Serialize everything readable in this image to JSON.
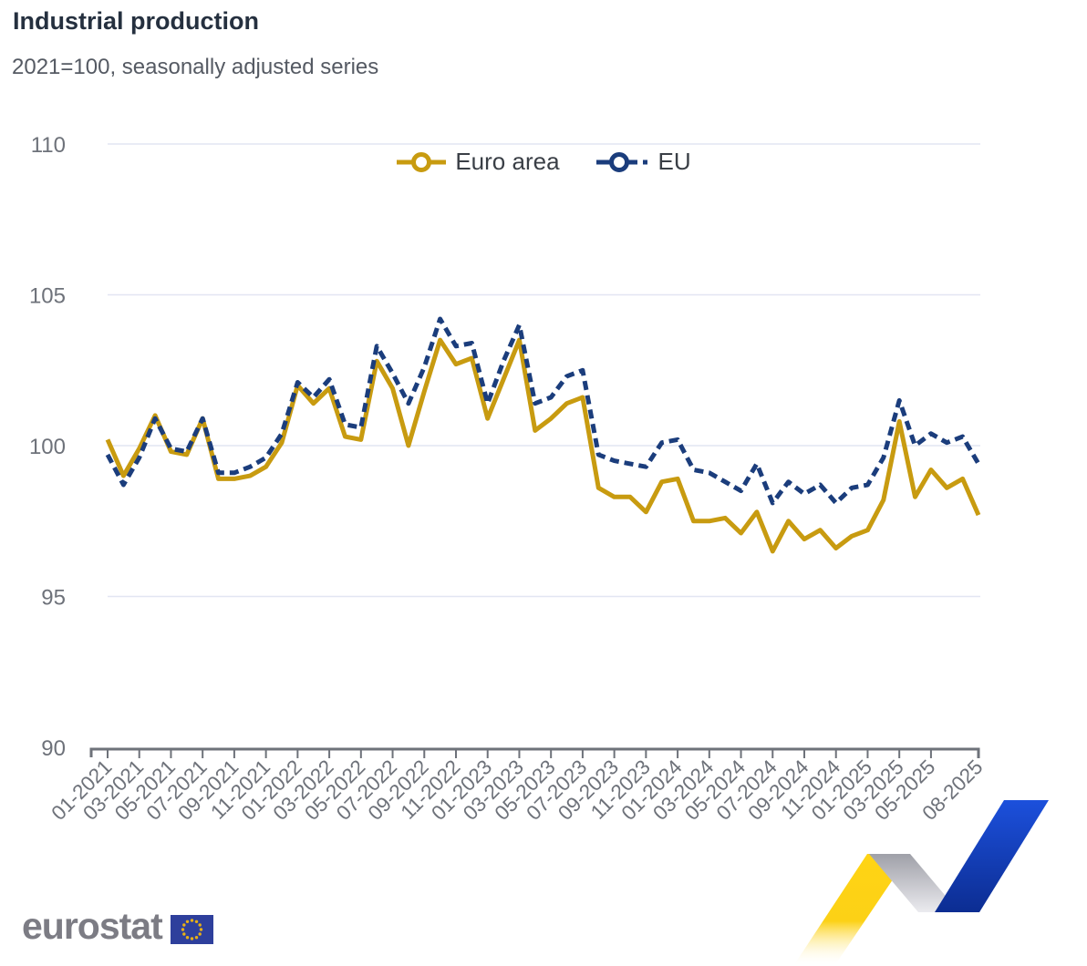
{
  "header": {
    "title": "Industrial production",
    "subtitle": "2021=100, seasonally adjusted series"
  },
  "legend": [
    {
      "label": "Euro area",
      "color": "#c89b10",
      "style": "solid"
    },
    {
      "label": "EU",
      "color": "#1b3d7c",
      "style": "dashed"
    }
  ],
  "footer": {
    "logo_text": "eurostat"
  },
  "colors": {
    "euro_area_line": "#c89b10",
    "eu_line": "#1b3d7c",
    "gridline": "#e2e5f2",
    "axis_line": "#6e727a",
    "axis_text": "#6e727a",
    "title_text": "#25303f",
    "subtitle_text": "#555a63",
    "flag_blue": "#2e3f9c",
    "flag_stars": "#e8b016",
    "swoosh_yellow": "#ffd414",
    "swoosh_blue": "#1c50dc"
  },
  "chart_data": {
    "type": "line",
    "title": "Industrial production",
    "subtitle": "2021=100, seasonally adjusted series",
    "xlabel": "",
    "ylabel": "",
    "ylim": [
      90,
      110
    ],
    "yticks": [
      90,
      95,
      100,
      105,
      110
    ],
    "grid": true,
    "legend_position": "top-center",
    "x": [
      "01-2021",
      "02-2021",
      "03-2021",
      "04-2021",
      "05-2021",
      "06-2021",
      "07-2021",
      "08-2021",
      "09-2021",
      "10-2021",
      "11-2021",
      "12-2021",
      "01-2022",
      "02-2022",
      "03-2022",
      "04-2022",
      "05-2022",
      "06-2022",
      "07-2022",
      "08-2022",
      "09-2022",
      "10-2022",
      "11-2022",
      "12-2022",
      "01-2023",
      "02-2023",
      "03-2023",
      "04-2023",
      "05-2023",
      "06-2023",
      "07-2023",
      "08-2023",
      "09-2023",
      "10-2023",
      "11-2023",
      "12-2023",
      "01-2024",
      "02-2024",
      "03-2024",
      "04-2024",
      "05-2024",
      "06-2024",
      "07-2024",
      "08-2024",
      "09-2024",
      "10-2024",
      "11-2024",
      "12-2024",
      "01-2025",
      "02-2025",
      "03-2025",
      "04-2025",
      "05-2025",
      "06-2025",
      "07-2025",
      "08-2025"
    ],
    "x_tick_indices": [
      0,
      2,
      4,
      6,
      8,
      10,
      12,
      14,
      16,
      18,
      20,
      22,
      24,
      26,
      28,
      30,
      32,
      34,
      36,
      38,
      40,
      42,
      44,
      46,
      48,
      50,
      52,
      55
    ],
    "x_tick_labels": [
      "01-2021",
      "03-2021",
      "05-2021",
      "07-2021",
      "09-2021",
      "11-2021",
      "01-2022",
      "03-2022",
      "05-2022",
      "07-2022",
      "09-2022",
      "11-2022",
      "01-2023",
      "03-2023",
      "05-2023",
      "07-2023",
      "09-2023",
      "11-2023",
      "01-2024",
      "03-2024",
      "05-2024",
      "07-2024",
      "09-2024",
      "11-2024",
      "01-2025",
      "03-2025",
      "05-2025",
      "08-2025"
    ],
    "series": [
      {
        "name": "Euro area",
        "color": "#c89b10",
        "dash": "solid",
        "values": [
          100.2,
          99.0,
          99.9,
          101.0,
          99.8,
          99.7,
          100.9,
          98.9,
          98.9,
          99.0,
          99.3,
          100.1,
          102.0,
          101.4,
          101.9,
          100.3,
          100.2,
          102.8,
          101.9,
          100.0,
          101.8,
          103.5,
          102.7,
          102.9,
          100.9,
          102.2,
          103.5,
          100.5,
          100.9,
          101.4,
          101.6,
          98.6,
          98.3,
          98.3,
          97.8,
          98.8,
          98.9,
          97.5,
          97.5,
          97.6,
          97.1,
          97.8,
          96.5,
          97.5,
          96.9,
          97.2,
          96.6,
          97.0,
          97.2,
          98.2,
          100.8,
          98.3,
          99.2,
          98.6,
          98.9,
          97.7
        ]
      },
      {
        "name": "EU",
        "color": "#1b3d7c",
        "dash": "dashed",
        "values": [
          99.7,
          98.7,
          99.6,
          100.9,
          99.9,
          99.8,
          100.9,
          99.1,
          99.1,
          99.3,
          99.6,
          100.4,
          102.1,
          101.6,
          102.2,
          100.7,
          100.6,
          103.3,
          102.4,
          101.4,
          102.6,
          104.2,
          103.3,
          103.4,
          101.4,
          102.8,
          104.0,
          101.4,
          101.6,
          102.3,
          102.5,
          99.7,
          99.5,
          99.4,
          99.3,
          100.1,
          100.2,
          99.2,
          99.1,
          98.8,
          98.5,
          99.4,
          98.1,
          98.8,
          98.4,
          98.7,
          98.1,
          98.6,
          98.7,
          99.6,
          101.5,
          100.0,
          100.4,
          100.1,
          100.3,
          99.4
        ]
      }
    ]
  }
}
